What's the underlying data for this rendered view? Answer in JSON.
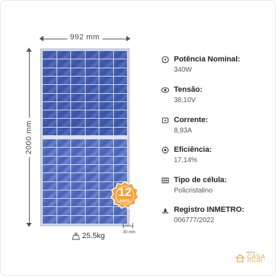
{
  "panel": {
    "width_label": "992 mm",
    "height_label": "2000 mm",
    "weight_label": "25.5kg",
    "thickness_label": "30 mm",
    "warranty": {
      "number": "12",
      "sub": "ANOS"
    }
  },
  "specs": [
    {
      "icon": "power-icon",
      "title": "Potência Nominal:",
      "value": "340W"
    },
    {
      "icon": "voltage-icon",
      "title": "Tensão:",
      "value": "38,10V"
    },
    {
      "icon": "current-icon",
      "title": "Corrente:",
      "value": "8,93A"
    },
    {
      "icon": "efficiency-icon",
      "title": "Eficiência:",
      "value": "17,14%"
    },
    {
      "icon": "cell-type-icon",
      "title": "Tipo de célula:",
      "value": "Policristalino"
    },
    {
      "icon": "inmetro-icon",
      "title": "Registro INMETRO:",
      "value": "006777/2022"
    }
  ],
  "brand": {
    "top": "MINHA",
    "casa": "CASA",
    "solar": "SOLAR"
  },
  "colors": {
    "accent": "#e0a33b",
    "panel_cell": "#4a64b5"
  }
}
